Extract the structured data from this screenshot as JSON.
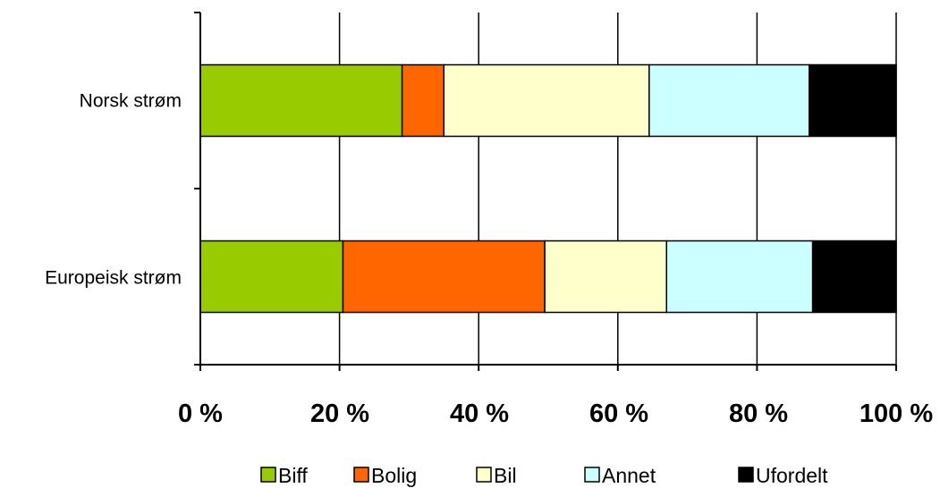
{
  "chart_data": {
    "type": "bar",
    "orientation": "horizontal",
    "stacked": true,
    "percent_stacked": true,
    "categories": [
      "Norsk strøm",
      "Europeisk strøm"
    ],
    "series": [
      {
        "name": "Biff",
        "color": "#99CC00",
        "values": [
          29,
          20.5
        ]
      },
      {
        "name": "Bolig",
        "color": "#FF6600",
        "values": [
          6,
          29
        ]
      },
      {
        "name": "Bil",
        "color": "#FFFFCC",
        "values": [
          29.5,
          17.5
        ]
      },
      {
        "name": "Annet",
        "color": "#CCFFFF",
        "values": [
          23,
          21
        ]
      },
      {
        "name": "Ufordelt",
        "color": "#000000",
        "values": [
          12.5,
          12
        ]
      }
    ],
    "x_ticks": [
      "0 %",
      "20 %",
      "40 %",
      "60 %",
      "80 %",
      "100 %"
    ],
    "xlim": [
      0,
      100
    ],
    "grid": true,
    "legend_position": "bottom"
  }
}
